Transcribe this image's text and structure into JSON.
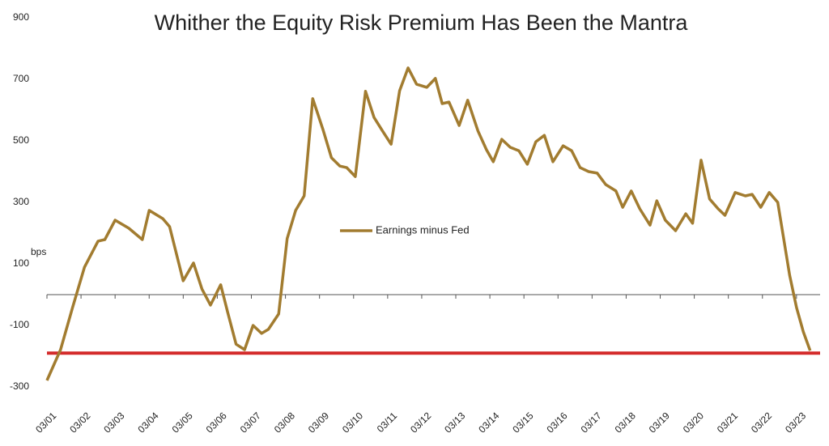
{
  "chart_data": {
    "type": "line",
    "title": "Whither the Equity Risk Premium Has Been the Mantra",
    "y_label": "bps",
    "x": [
      2001.0,
      2001.4,
      2001.75,
      2002.1,
      2002.5,
      2002.7,
      2003.0,
      2003.4,
      2003.8,
      2004.0,
      2004.4,
      2004.6,
      2005.0,
      2005.3,
      2005.55,
      2005.8,
      2006.1,
      2006.3,
      2006.55,
      2006.8,
      2007.05,
      2007.3,
      2007.5,
      2007.8,
      2008.05,
      2008.3,
      2008.55,
      2008.8,
      2009.1,
      2009.35,
      2009.6,
      2009.8,
      2010.05,
      2010.35,
      2010.6,
      2010.85,
      2011.1,
      2011.35,
      2011.6,
      2011.85,
      2012.15,
      2012.4,
      2012.6,
      2012.8,
      2013.1,
      2013.35,
      2013.65,
      2013.9,
      2014.1,
      2014.35,
      2014.6,
      2014.85,
      2015.1,
      2015.35,
      2015.6,
      2015.85,
      2016.15,
      2016.4,
      2016.65,
      2016.9,
      2017.15,
      2017.4,
      2017.7,
      2017.9,
      2018.15,
      2018.4,
      2018.7,
      2018.9,
      2019.15,
      2019.45,
      2019.75,
      2019.95,
      2020.2,
      2020.45,
      2020.7,
      2020.9,
      2021.2,
      2021.5,
      2021.7,
      2021.95,
      2022.2,
      2022.45,
      2022.8,
      2023.0,
      2023.2,
      2023.4
    ],
    "series": [
      {
        "name": "Earnings minus Fed",
        "color": "#a27c30",
        "values": [
          -279,
          -179,
          -42,
          89,
          174,
          179,
          242,
          216,
          179,
          274,
          247,
          221,
          45,
          103,
          18,
          -34,
          32,
          -55,
          -161,
          -179,
          -100,
          -126,
          -113,
          -63,
          182,
          274,
          321,
          637,
          537,
          445,
          418,
          413,
          384,
          661,
          576,
          532,
          489,
          663,
          737,
          684,
          674,
          703,
          621,
          626,
          550,
          632,
          532,
          471,
          432,
          505,
          479,
          468,
          424,
          497,
          518,
          432,
          484,
          468,
          413,
          400,
          395,
          358,
          337,
          284,
          337,
          279,
          226,
          305,
          242,
          208,
          263,
          232,
          437,
          311,
          279,
          258,
          332,
          321,
          326,
          284,
          332,
          300,
          63,
          -42,
          -121,
          -182
        ]
      }
    ],
    "reference_line": {
      "value": -190,
      "color": "#d42a2a"
    },
    "xlim": [
      2001,
      2023.55
    ],
    "xticks": [
      {
        "value": 2001,
        "label": "03/01"
      },
      {
        "value": 2002,
        "label": "03/02"
      },
      {
        "value": 2003,
        "label": "03/03"
      },
      {
        "value": 2004,
        "label": "03/04"
      },
      {
        "value": 2005,
        "label": "03/05"
      },
      {
        "value": 2006,
        "label": "03/06"
      },
      {
        "value": 2007,
        "label": "03/07"
      },
      {
        "value": 2008,
        "label": "03/08"
      },
      {
        "value": 2009,
        "label": "03/09"
      },
      {
        "value": 2010,
        "label": "03/10"
      },
      {
        "value": 2011,
        "label": "03/11"
      },
      {
        "value": 2012,
        "label": "03/12"
      },
      {
        "value": 2013,
        "label": "03/13"
      },
      {
        "value": 2014,
        "label": "03/14"
      },
      {
        "value": 2015,
        "label": "03/15"
      },
      {
        "value": 2016,
        "label": "03/16"
      },
      {
        "value": 2017,
        "label": "03/17"
      },
      {
        "value": 2018,
        "label": "03/18"
      },
      {
        "value": 2019,
        "label": "03/19"
      },
      {
        "value": 2020,
        "label": "03/20"
      },
      {
        "value": 2021,
        "label": "03/21"
      },
      {
        "value": 2022,
        "label": "03/22"
      },
      {
        "value": 2023,
        "label": "03/23"
      }
    ],
    "ylim": [
      -300,
      900
    ],
    "yticks": [
      -300,
      -100,
      100,
      300,
      500,
      700,
      900
    ],
    "grid": false
  }
}
